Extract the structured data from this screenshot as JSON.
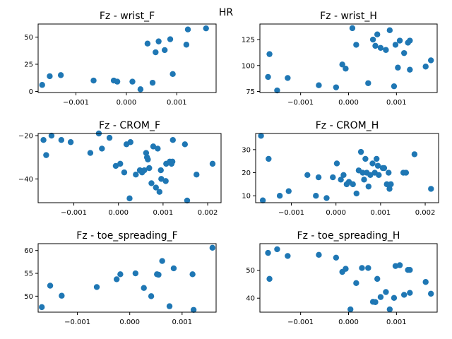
{
  "figure": {
    "suptitle": "HR"
  },
  "colors": {
    "marker": "#1f77b4",
    "axes": "#000000",
    "background": "#ffffff"
  },
  "chart_data": [
    {
      "type": "scatter",
      "title": "Fz - wrist_F",
      "xlim": [
        -0.00175,
        0.00178
      ],
      "ylim": [
        -1,
        62
      ],
      "xticks": [
        -0.001,
        0.0,
        0.001
      ],
      "xtick_labels": [
        "−0.001",
        "0.000",
        "0.001"
      ],
      "yticks": [
        0,
        25,
        50
      ],
      "ytick_labels": [
        "0",
        "25",
        "50"
      ],
      "x": [
        -0.00167,
        -0.00152,
        -0.0013,
        -0.00065,
        -0.00025,
        -0.00018,
        0.00012,
        0.00028,
        0.00042,
        0.00052,
        0.00058,
        0.00064,
        0.00076,
        0.00087,
        0.00092,
        0.00119,
        0.00122,
        0.00158
      ],
      "y": [
        6,
        14,
        15,
        10,
        10,
        9,
        9,
        2,
        44,
        8,
        36,
        46,
        38,
        48,
        16,
        43,
        57,
        58
      ]
    },
    {
      "type": "scatter",
      "title": "Fz - wrist_H",
      "xlim": [
        -0.00185,
        0.00185
      ],
      "ylim": [
        74,
        140
      ],
      "xticks": [
        -0.001,
        0.0,
        0.001
      ],
      "xtick_labels": [
        "−0.001",
        "0.000",
        "0.001"
      ],
      "yticks": [
        75,
        100,
        125
      ],
      "ytick_labels": [
        "75",
        "100",
        "125"
      ],
      "x": [
        -0.00168,
        -0.00165,
        -0.00149,
        -0.00127,
        -0.00062,
        -0.00026,
        -0.00013,
        -6e-05,
        8e-05,
        0.00016,
        0.00041,
        0.00051,
        0.00056,
        0.0006,
        0.00067,
        0.00078,
        0.00086,
        0.00095,
        0.00098,
        0.00103,
        0.00107,
        0.00116,
        0.00124,
        0.00128,
        0.00128,
        0.00161,
        0.00172
      ],
      "y": [
        89,
        111,
        76,
        88,
        81,
        79,
        101,
        97,
        136,
        120,
        83,
        125,
        119,
        130,
        117,
        115,
        134,
        80,
        120,
        98,
        124,
        112,
        122,
        124,
        96,
        99,
        105
      ]
    },
    {
      "type": "scatter",
      "title": "Fz - CROM_F",
      "xlim": [
        -0.0018,
        0.0023
      ],
      "ylim": [
        -51,
        -19
      ],
      "xticks": [
        -0.001,
        0.0,
        0.001,
        0.002
      ],
      "xtick_labels": [
        "−0.001",
        "0.000",
        "0.001",
        "0.002"
      ],
      "yticks": [
        -40,
        -20
      ],
      "ytick_labels": [
        "−40",
        "−20"
      ],
      "x": [
        -0.00168,
        -0.00162,
        -0.0015,
        -0.00128,
        -0.00107,
        -0.00063,
        -0.00044,
        -0.00037,
        -0.0002,
        -6e-05,
        4e-05,
        0.00013,
        0.00018,
        0.00025,
        0.00027,
        0.00039,
        0.00048,
        0.00053,
        0.00058,
        0.00062,
        0.00064,
        0.00066,
        0.00069,
        0.00074,
        0.00078,
        0.00084,
        0.00088,
        0.00092,
        0.00095,
        0.00096,
        0.00106,
        0.00107,
        0.00115,
        0.00119,
        0.00121,
        0.00122,
        0.00149,
        0.00154,
        0.00175,
        0.00211
      ],
      "y": [
        -22,
        -29,
        -20,
        -22,
        -23,
        -28,
        -19,
        -26,
        -21,
        -34,
        -33,
        -37,
        -24,
        -49,
        -23,
        -38,
        -36,
        -37,
        -36,
        -28,
        -30,
        -31,
        -35,
        -42,
        -25,
        -44,
        -26,
        -46,
        -36,
        -40,
        -41,
        -33,
        -32,
        -33,
        -32,
        -22,
        -24,
        -50,
        -38,
        -33
      ]
    },
    {
      "type": "scatter",
      "title": "Fz - CROM_H",
      "xlim": [
        -0.0018,
        0.0023
      ],
      "ylim": [
        7,
        37
      ],
      "xticks": [
        -0.001,
        0.0,
        0.001,
        0.002
      ],
      "xtick_labels": [
        "−0.001",
        "0.000",
        "0.001",
        "0.002"
      ],
      "yticks": [
        10,
        20,
        30
      ],
      "ytick_labels": [
        "10",
        "20",
        "30"
      ],
      "x": [
        -0.00168,
        -0.00164,
        -0.00151,
        -0.00126,
        -0.00106,
        -0.00064,
        -0.00045,
        -0.00039,
        -0.00021,
        -7e-05,
        2e-05,
        0.00011,
        0.00017,
        0.00024,
        0.00029,
        0.00038,
        0.00046,
        0.00051,
        0.00056,
        0.0006,
        0.00063,
        0.00066,
        0.00069,
        0.00073,
        0.00077,
        0.00082,
        0.00087,
        0.00091,
        0.00094,
        0.00096,
        0.00105,
        0.00108,
        0.00114,
        0.00118,
        0.0012,
        0.00123,
        0.00151,
        0.00157,
        0.00176,
        0.00213
      ],
      "y": [
        36,
        8,
        26,
        10,
        12,
        19,
        10,
        18,
        9,
        18,
        24,
        17,
        19,
        15,
        16,
        15,
        11,
        21,
        29,
        20,
        17,
        26,
        20,
        14,
        19,
        24,
        20,
        26,
        23,
        19,
        22,
        22,
        15,
        20,
        13,
        15,
        20,
        20,
        28,
        13
      ]
    },
    {
      "type": "scatter",
      "title": "Fz - toe_spreading_F",
      "xlim": [
        -0.00175,
        0.00165
      ],
      "ylim": [
        46.5,
        61.5
      ],
      "xticks": [
        -0.001,
        0.0,
        0.001
      ],
      "xtick_labels": [
        "−0.001",
        "0.000",
        "0.001"
      ],
      "yticks": [
        50,
        55,
        60
      ],
      "ytick_labels": [
        "50",
        "55",
        "60"
      ],
      "x": [
        -0.00168,
        -0.00152,
        -0.0013,
        -0.00063,
        -0.00025,
        -0.00018,
        0.00011,
        0.00027,
        0.00041,
        0.00052,
        0.00055,
        0.00062,
        0.00076,
        0.00084,
        0.0012,
        0.00122,
        0.00158
      ],
      "y": [
        47.6,
        52.3,
        50.1,
        52.0,
        53.7,
        54.8,
        55.0,
        51.8,
        50.0,
        54.8,
        54.7,
        57.7,
        47.8,
        56.1,
        54.8,
        47.0,
        60.6
      ]
    },
    {
      "type": "scatter",
      "title": "Fz - toe_spreading_H",
      "xlim": [
        -0.00185,
        0.00185
      ],
      "ylim": [
        35,
        59.5
      ],
      "xticks": [
        -0.001,
        0.0,
        0.001
      ],
      "xtick_labels": [
        "−0.001",
        "0.000",
        "0.001"
      ],
      "yticks": [
        40,
        50
      ],
      "ytick_labels": [
        "40",
        "50"
      ],
      "x": [
        -0.00168,
        -0.00165,
        -0.00149,
        -0.00127,
        -0.00062,
        -0.00026,
        -0.00013,
        -6e-05,
        4e-05,
        0.00016,
        0.00028,
        0.00041,
        0.00051,
        0.00056,
        0.0006,
        0.00067,
        0.00078,
        0.00086,
        0.00095,
        0.00098,
        0.00107,
        0.00116,
        0.00124,
        0.00128,
        0.00128,
        0.00161,
        0.00172
      ],
      "y": [
        56.2,
        46.9,
        57.5,
        55.1,
        55.5,
        54.5,
        49.4,
        50.5,
        36.0,
        45.4,
        50.8,
        50.8,
        38.7,
        38.6,
        46.9,
        40.4,
        42.2,
        36.0,
        40.1,
        51.5,
        51.8,
        41.2,
        50.1,
        41.9,
        50.1,
        45.8,
        41.6
      ]
    }
  ]
}
